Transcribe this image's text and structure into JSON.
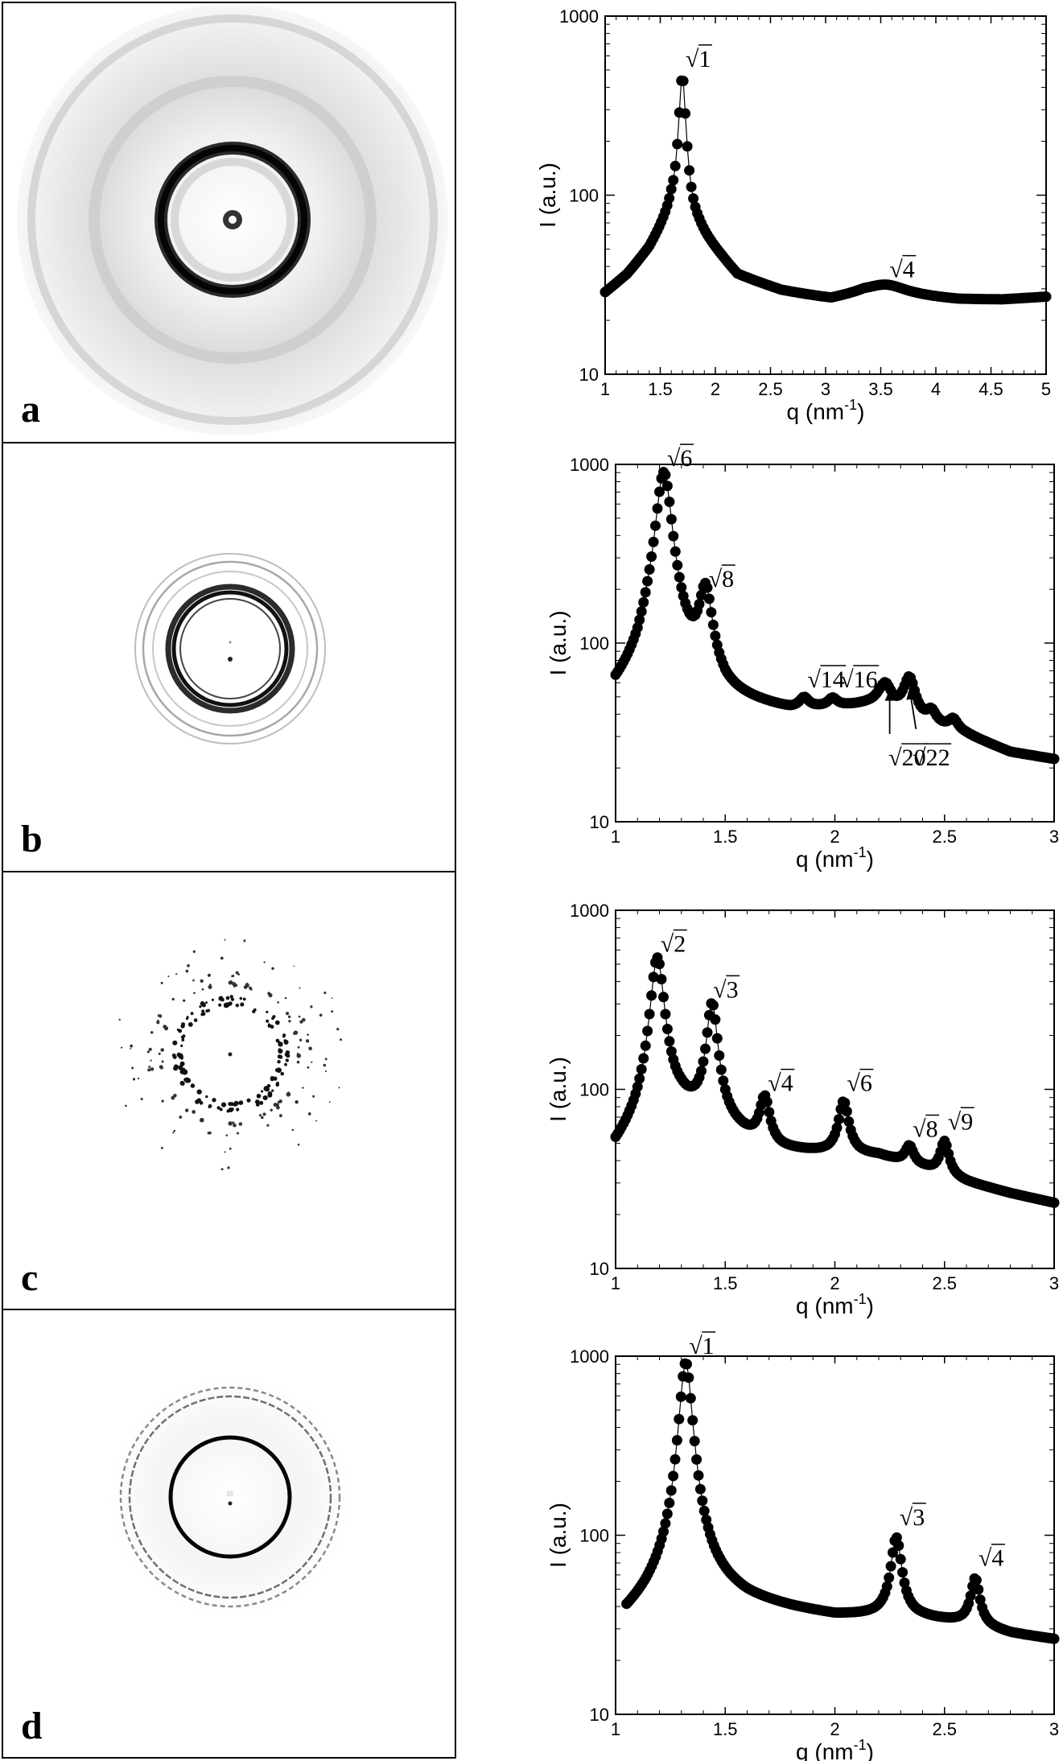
{
  "chart_data": [
    {
      "type": "scatter",
      "panel": "a",
      "title": "",
      "xlabel": "q (nm^-1)",
      "xlabel_base": "q (nm",
      "xlabel_sup": "-1",
      "xlabel_close": ")",
      "ylabel": "I (a.u.)",
      "yscale": "log",
      "xlim": [
        1,
        5
      ],
      "ylim": [
        10,
        1000
      ],
      "xticks": [
        1,
        1.5,
        2,
        2.5,
        3,
        3.5,
        4,
        4.5,
        5
      ],
      "xtick_labels": [
        "1",
        "1.5",
        "2",
        "2.5",
        "3",
        "3.5",
        "4",
        "4.5",
        "5"
      ],
      "yticks": [
        10,
        100,
        1000
      ],
      "ytick_labels": [
        "10",
        "100",
        "1000"
      ],
      "peaks": [
        [
          1.05,
          32
        ],
        [
          1.5,
          55
        ],
        [
          1.63,
          100
        ],
        [
          1.7,
          480
        ],
        [
          1.77,
          100
        ],
        [
          1.95,
          50
        ],
        [
          3.0,
          26
        ],
        [
          3.55,
          30
        ],
        [
          4.1,
          26
        ],
        [
          5.0,
          27
        ]
      ],
      "baseline": [
        [
          1.0,
          28
        ],
        [
          1.2,
          35
        ],
        [
          1.4,
          48
        ],
        [
          1.6,
          75
        ],
        [
          1.85,
          60
        ],
        [
          2.2,
          35
        ],
        [
          2.6,
          29
        ],
        [
          3.05,
          26
        ],
        [
          3.35,
          28
        ],
        [
          3.8,
          27
        ],
        [
          4.2,
          26
        ],
        [
          4.6,
          26
        ],
        [
          5.0,
          27
        ]
      ],
      "peak_defs": [
        {
          "q": 1.7,
          "h": 400,
          "w": 0.03
        },
        {
          "q": 3.55,
          "h": 4,
          "w": 0.22
        }
      ],
      "annotations": [
        {
          "label": "√1",
          "x": 1.7,
          "y": 480
        },
        {
          "label": "√4",
          "x": 3.55,
          "y": 32
        }
      ]
    },
    {
      "type": "scatter",
      "panel": "b",
      "xlabel": "q (nm^-1)",
      "xlabel_base": "q (nm",
      "xlabel_sup": "-1",
      "xlabel_close": ")",
      "ylabel": "I (a.u.)",
      "yscale": "log",
      "xlim": [
        1,
        3
      ],
      "ylim": [
        10,
        1000
      ],
      "xticks": [
        1,
        1.5,
        2,
        2.5,
        3
      ],
      "xtick_labels": [
        "1",
        "1.5",
        "2",
        "2.5",
        "3"
      ],
      "yticks": [
        10,
        100,
        1000
      ],
      "ytick_labels": [
        "10",
        "100",
        "1000"
      ],
      "baseline": [
        [
          1.0,
          45
        ],
        [
          1.1,
          55
        ],
        [
          1.15,
          70
        ],
        [
          1.4,
          55
        ],
        [
          1.5,
          45
        ],
        [
          1.8,
          40
        ],
        [
          2.0,
          42
        ],
        [
          2.2,
          45
        ],
        [
          2.4,
          35
        ],
        [
          2.6,
          30
        ],
        [
          2.8,
          24
        ],
        [
          3.0,
          22
        ]
      ],
      "peak_defs": [
        {
          "q": 1.22,
          "h": 840,
          "w": 0.035
        },
        {
          "q": 1.41,
          "h": 135,
          "w": 0.03
        },
        {
          "q": 1.86,
          "h": 6,
          "w": 0.025
        },
        {
          "q": 1.99,
          "h": 5,
          "w": 0.025
        },
        {
          "q": 2.23,
          "h": 14,
          "w": 0.03
        },
        {
          "q": 2.34,
          "h": 25,
          "w": 0.03
        },
        {
          "q": 2.44,
          "h": 6,
          "w": 0.025
        },
        {
          "q": 2.54,
          "h": 5,
          "w": 0.025
        }
      ],
      "annotations": [
        {
          "label": "√6",
          "x": 1.22,
          "y": 900
        },
        {
          "label": "√8",
          "x": 1.41,
          "y": 190
        },
        {
          "label": "√14",
          "x": 1.86,
          "y": 52
        },
        {
          "label": "√16",
          "x": 2.01,
          "y": 52
        },
        {
          "label": "√20",
          "x": 2.23,
          "y": 19
        },
        {
          "label": "√22",
          "x": 2.34,
          "y": 19
        }
      ],
      "arrows": [
        {
          "from": [
            2.25,
            31
          ],
          "to": [
            2.25,
            55
          ]
        },
        {
          "from": [
            2.37,
            33
          ],
          "to": [
            2.34,
            56
          ]
        }
      ]
    },
    {
      "type": "scatter",
      "panel": "c",
      "xlabel": "q (nm^-1)",
      "xlabel_base": "q (nm",
      "xlabel_sup": "-1",
      "xlabel_close": ")",
      "ylabel": "I (a.u.)",
      "yscale": "log",
      "xlim": [
        1,
        3
      ],
      "ylim": [
        10,
        1000
      ],
      "xticks": [
        1,
        1.5,
        2,
        2.5,
        3
      ],
      "xtick_labels": [
        "1",
        "1.5",
        "2",
        "2.5",
        "3"
      ],
      "yticks": [
        10,
        100,
        1000
      ],
      "ytick_labels": [
        "10",
        "100",
        "1000"
      ],
      "baseline": [
        [
          1.0,
          42
        ],
        [
          1.1,
          55
        ],
        [
          1.2,
          75
        ],
        [
          1.3,
          75
        ],
        [
          1.5,
          60
        ],
        [
          1.7,
          45
        ],
        [
          2.0,
          43
        ],
        [
          2.2,
          42
        ],
        [
          2.4,
          36
        ],
        [
          2.6,
          30
        ],
        [
          2.8,
          26
        ],
        [
          3.0,
          23
        ]
      ],
      "peak_defs": [
        {
          "q": 1.19,
          "h": 470,
          "w": 0.03
        },
        {
          "q": 1.44,
          "h": 235,
          "w": 0.025
        },
        {
          "q": 1.68,
          "h": 42,
          "w": 0.025
        },
        {
          "q": 2.04,
          "h": 42,
          "w": 0.025
        },
        {
          "q": 2.34,
          "h": 10,
          "w": 0.022
        },
        {
          "q": 2.5,
          "h": 18,
          "w": 0.022
        }
      ],
      "annotations": [
        {
          "label": "√2",
          "x": 1.19,
          "y": 540
        },
        {
          "label": "√3",
          "x": 1.43,
          "y": 300
        },
        {
          "label": "√4",
          "x": 1.68,
          "y": 90
        },
        {
          "label": "√6",
          "x": 2.04,
          "y": 90
        },
        {
          "label": "√8",
          "x": 2.34,
          "y": 50
        },
        {
          "label": "√9",
          "x": 2.5,
          "y": 55
        }
      ]
    },
    {
      "type": "scatter",
      "panel": "d",
      "xlabel": "q (nm^-1)",
      "xlabel_base": "q (nm",
      "xlabel_sup": "-1",
      "xlabel_close": ")",
      "ylabel": "I (a.u.)",
      "yscale": "log",
      "xlim": [
        1,
        3
      ],
      "ylim": [
        10,
        1000
      ],
      "xticks": [
        1,
        1.5,
        2,
        2.5,
        3
      ],
      "xtick_labels": [
        "1",
        "1.5",
        "2",
        "2.5",
        "3"
      ],
      "yticks": [
        10,
        100,
        1000
      ],
      "ytick_labels": [
        "10",
        "100",
        "1000"
      ],
      "baseline": [
        [
          1.05,
          32
        ],
        [
          1.2,
          42
        ],
        [
          1.4,
          50
        ],
        [
          1.6,
          42
        ],
        [
          1.8,
          38
        ],
        [
          2.0,
          35
        ],
        [
          2.2,
          35
        ],
        [
          2.4,
          34
        ],
        [
          2.6,
          32
        ],
        [
          2.8,
          28
        ],
        [
          3.0,
          26
        ]
      ],
      "peak_defs": [
        {
          "q": 1.32,
          "h": 880,
          "w": 0.028
        },
        {
          "q": 2.28,
          "h": 62,
          "w": 0.025
        },
        {
          "q": 2.64,
          "h": 26,
          "w": 0.022
        }
      ],
      "annotations": [
        {
          "label": "√1",
          "x": 1.32,
          "y": 950
        },
        {
          "label": "√3",
          "x": 2.28,
          "y": 105
        },
        {
          "label": "√4",
          "x": 2.64,
          "y": 62
        }
      ]
    }
  ],
  "panels": [
    {
      "letter": "a"
    },
    {
      "letter": "b"
    },
    {
      "letter": "c"
    },
    {
      "letter": "d"
    }
  ]
}
